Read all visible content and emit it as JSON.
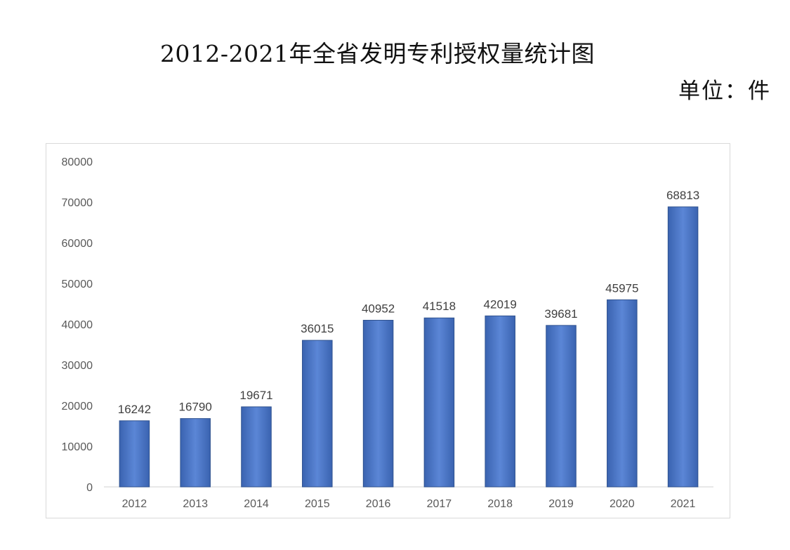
{
  "title": "2012-2021年全省发明专利授权量统计图",
  "unit": "单位：件",
  "chart_data": {
    "type": "bar",
    "title": "",
    "xlabel": "",
    "ylabel": "",
    "categories": [
      "2012",
      "2013",
      "2014",
      "2015",
      "2016",
      "2017",
      "2018",
      "2019",
      "2020",
      "2021"
    ],
    "values": [
      16242,
      16790,
      19671,
      36015,
      40952,
      41518,
      42019,
      39681,
      45975,
      68813
    ],
    "data_labels": [
      "16242",
      "16790",
      "19671",
      "36015",
      "40952",
      "41518",
      "42019",
      "39681",
      "45975",
      "68813"
    ],
    "ylim": [
      0,
      80000
    ],
    "yticks": [
      0,
      10000,
      20000,
      30000,
      40000,
      50000,
      60000,
      70000,
      80000
    ],
    "ytick_labels": [
      "0",
      "10000",
      "20000",
      "30000",
      "40000",
      "50000",
      "60000",
      "70000",
      "80000"
    ],
    "grid": false,
    "legend": "none",
    "bar_color": "#4472c4",
    "bar_edge_color": "#2f528f"
  }
}
